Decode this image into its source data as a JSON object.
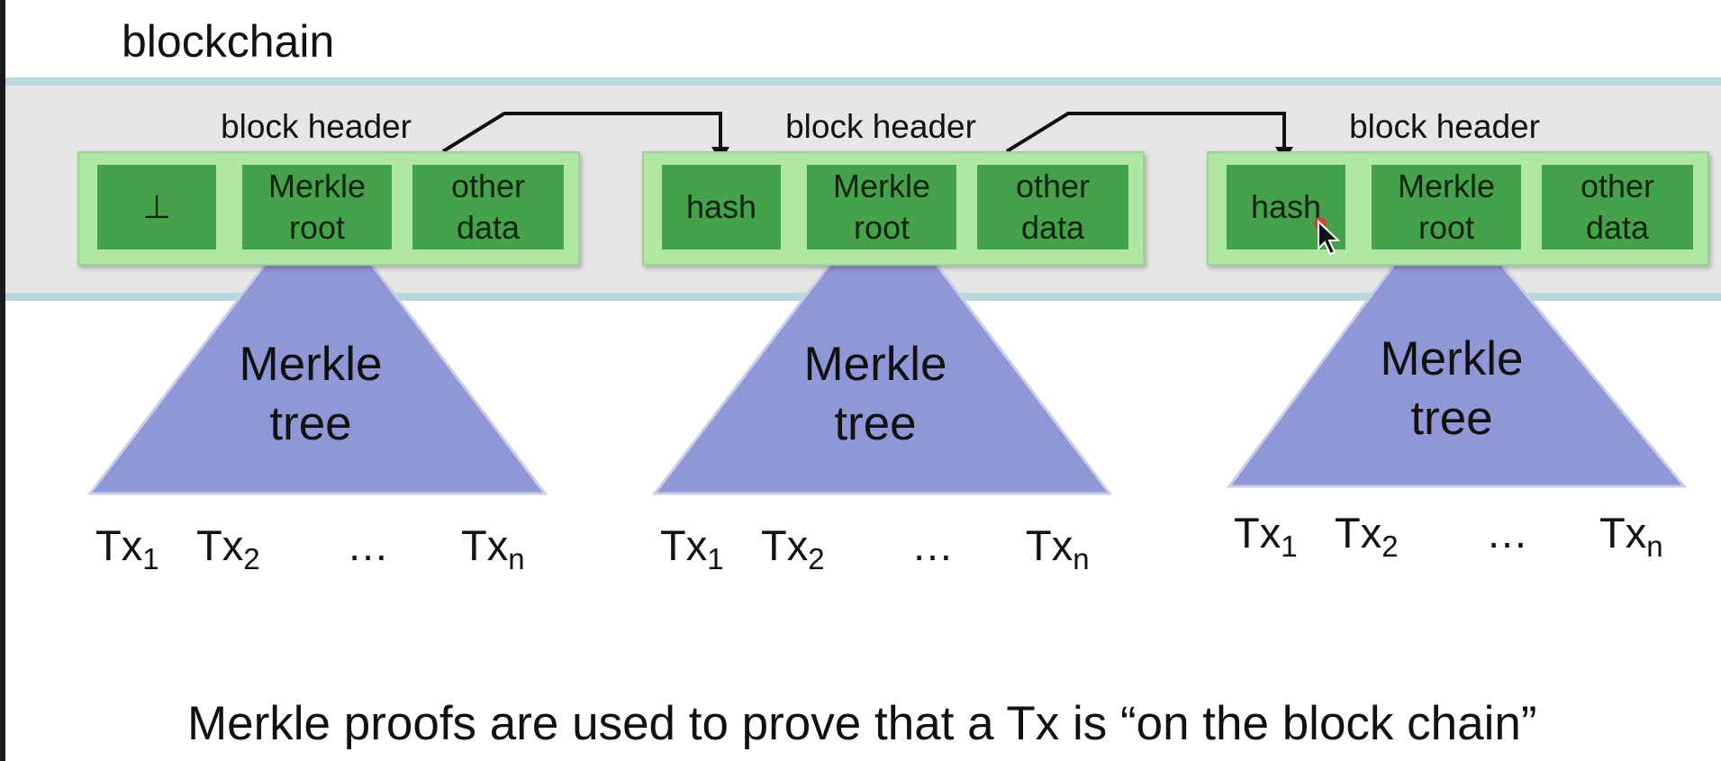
{
  "title": "blockchain",
  "blocks": [
    {
      "header_label": "block header",
      "cells": [
        "⊥",
        "Merkle\nroot",
        "other\ndata"
      ],
      "tree_label": "Merkle\ntree",
      "txs": [
        {
          "base": "Tx",
          "sub": "1"
        },
        {
          "base": "Tx",
          "sub": "2"
        },
        {
          "base": "Tx",
          "sub": "n"
        }
      ],
      "ellipsis": "…"
    },
    {
      "header_label": "block header",
      "cells": [
        "hash",
        "Merkle\nroot",
        "other\ndata"
      ],
      "tree_label": "Merkle\ntree",
      "txs": [
        {
          "base": "Tx",
          "sub": "1"
        },
        {
          "base": "Tx",
          "sub": "2"
        },
        {
          "base": "Tx",
          "sub": "n"
        }
      ],
      "ellipsis": "…"
    },
    {
      "header_label": "block header",
      "cells": [
        "hash",
        "Merkle\nroot",
        "other\ndata"
      ],
      "tree_label": "Merkle\ntree",
      "txs": [
        {
          "base": "Tx",
          "sub": "1"
        },
        {
          "base": "Tx",
          "sub": "2"
        },
        {
          "base": "Tx",
          "sub": "n"
        }
      ],
      "ellipsis": "…"
    }
  ],
  "caption": "Merkle proofs are used to prove that a Tx is “on the block chain”",
  "colors": {
    "band": "#e6e6e6",
    "band_border": "#b9d8dd",
    "header_box": "#aee8a4",
    "cell": "#46a24a",
    "tree": "#8f97d6"
  },
  "icons": [
    "mouse-pointer-icon"
  ]
}
